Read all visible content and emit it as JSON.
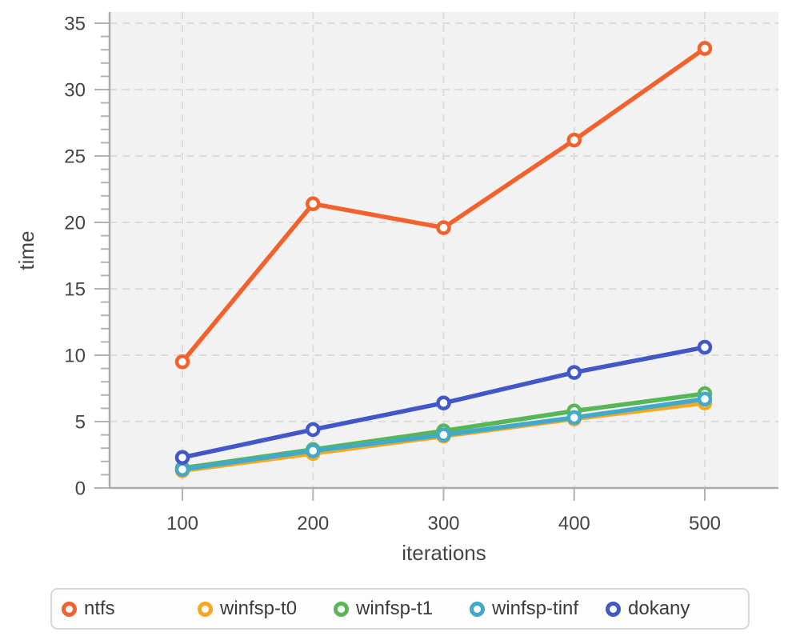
{
  "chart_data": {
    "type": "line",
    "title": "",
    "xlabel": "iterations",
    "ylabel": "time",
    "x": [
      100,
      200,
      300,
      400,
      500
    ],
    "ylim": [
      0,
      35
    ],
    "y_ticks": [
      0,
      5,
      10,
      15,
      20,
      25,
      30,
      35
    ],
    "y_minor_step": 1,
    "grid": "dashed",
    "legend_position": "bottom",
    "plot_bg_color": "#f2f2f2",
    "series": [
      {
        "name": "ntfs",
        "color": "#f3622d",
        "values": [
          9.5,
          21.4,
          19.6,
          26.2,
          33.1
        ]
      },
      {
        "name": "winfsp-t0",
        "color": "#fba71b",
        "values": [
          1.3,
          2.6,
          3.9,
          5.2,
          6.4
        ]
      },
      {
        "name": "winfsp-t1",
        "color": "#57b757",
        "values": [
          1.5,
          2.9,
          4.3,
          5.8,
          7.1
        ]
      },
      {
        "name": "winfsp-tinf",
        "color": "#41a9c9",
        "values": [
          1.4,
          2.8,
          4.0,
          5.3,
          6.7
        ]
      },
      {
        "name": "dokany",
        "color": "#4258c9",
        "values": [
          2.3,
          4.4,
          6.4,
          8.7,
          10.6
        ]
      }
    ]
  }
}
